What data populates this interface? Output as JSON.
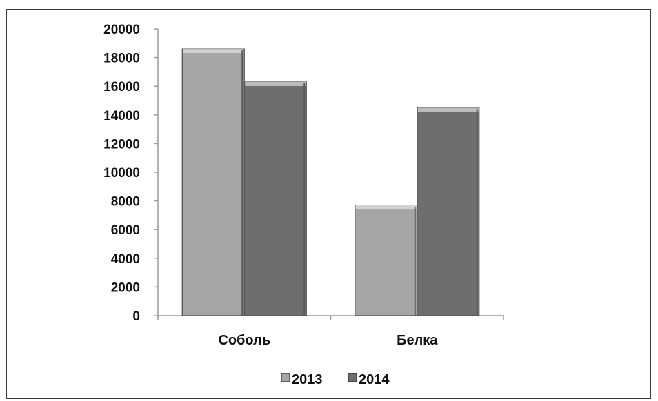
{
  "chart_data": {
    "type": "bar",
    "categories": [
      "Соболь",
      "Белка"
    ],
    "series": [
      {
        "name": "2013",
        "values": [
          18600,
          7700
        ],
        "color": "#a6a6a6",
        "top_color": "#d2d2d2"
      },
      {
        "name": "2014",
        "values": [
          16300,
          14500
        ],
        "color": "#6e6e6e",
        "top_color": "#bdbdbd"
      }
    ],
    "y_ticks": [
      "0",
      "2000",
      "4000",
      "6000",
      "8000",
      "10000",
      "12000",
      "14000",
      "16000",
      "18000",
      "20000"
    ],
    "ylim": [
      0,
      20000
    ],
    "title": "",
    "xlabel": "",
    "ylabel": "",
    "grid": false,
    "legend_position": "bottom"
  }
}
